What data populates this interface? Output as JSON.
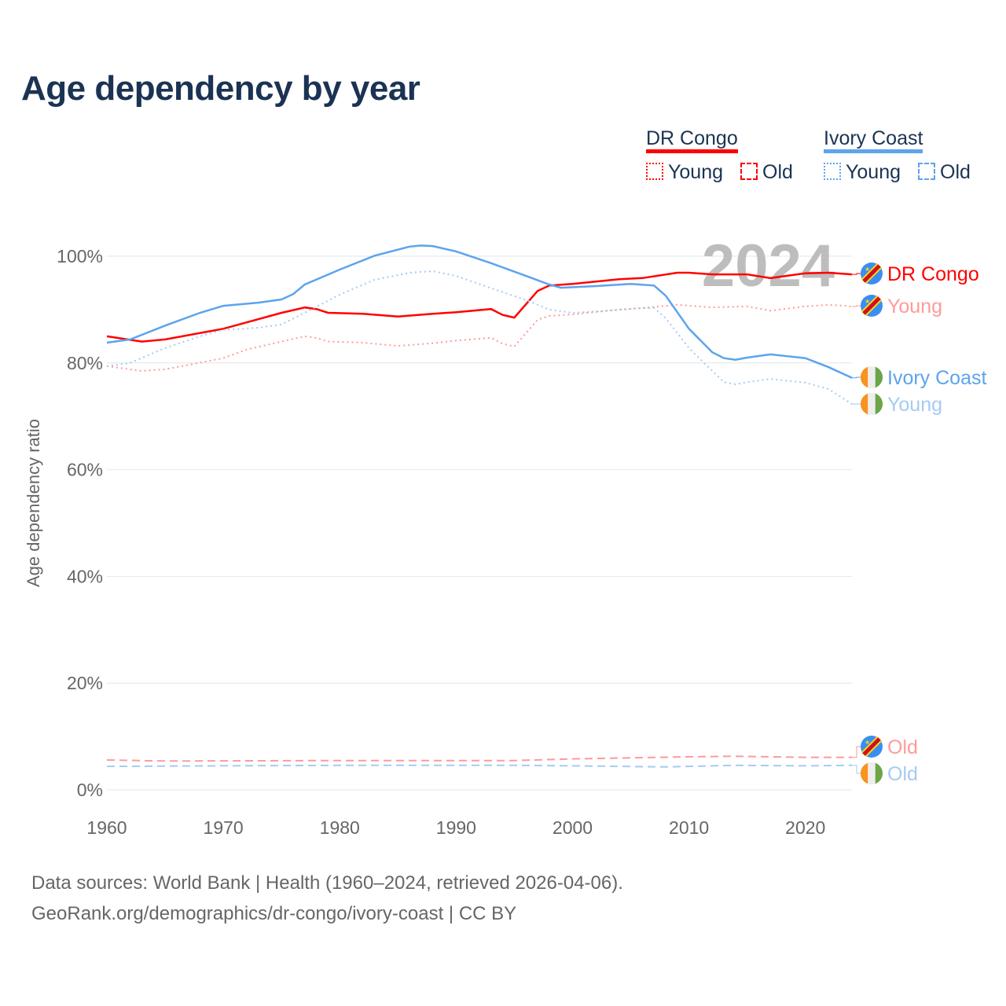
{
  "title": "Age dependency by year",
  "legend": {
    "groups": [
      {
        "name": "DR Congo",
        "color": "#ff0000",
        "items": [
          "Young",
          "Old"
        ]
      },
      {
        "name": "Ivory Coast",
        "color": "#5ca4ec",
        "items": [
          "Young",
          "Old"
        ]
      }
    ]
  },
  "year_watermark": "2024",
  "source_line1": "Data sources: World Bank | Health (1960–2024, retrieved 2026-04-06).",
  "source_line2": "GeoRank.org/demographics/dr-congo/ivory-coast | CC BY",
  "chart_data": {
    "type": "line",
    "title": "Age dependency by year",
    "xlabel": "",
    "ylabel": "Age dependency ratio",
    "xlim": [
      1960,
      2024
    ],
    "ylim": [
      0,
      100
    ],
    "xticks": [
      "1960",
      "1970",
      "1980",
      "1990",
      "2000",
      "2010",
      "2020"
    ],
    "yticks": [
      "0%",
      "20%",
      "40%",
      "60%",
      "80%",
      "100%"
    ],
    "series": [
      {
        "name": "DR Congo",
        "label": "DR Congo",
        "style": "solid",
        "color": "#ff0000",
        "points": [
          [
            1960,
            85.0
          ],
          [
            1963,
            84.0
          ],
          [
            1965,
            84.4
          ],
          [
            1970,
            86.4
          ],
          [
            1972,
            87.6
          ],
          [
            1975,
            89.4
          ],
          [
            1977,
            90.4
          ],
          [
            1978,
            90.1
          ],
          [
            1979,
            89.4
          ],
          [
            1982,
            89.2
          ],
          [
            1985,
            88.7
          ],
          [
            1988,
            89.2
          ],
          [
            1990,
            89.5
          ],
          [
            1993,
            90.1
          ],
          [
            1994,
            89.0
          ],
          [
            1995,
            88.5
          ],
          [
            1997,
            93.5
          ],
          [
            1998,
            94.5
          ],
          [
            2000,
            94.8
          ],
          [
            2004,
            95.7
          ],
          [
            2006,
            95.9
          ],
          [
            2009,
            96.9
          ],
          [
            2010,
            96.9
          ],
          [
            2012,
            96.6
          ],
          [
            2015,
            96.6
          ],
          [
            2017,
            95.9
          ],
          [
            2020,
            96.8
          ],
          [
            2022,
            96.9
          ],
          [
            2024,
            96.6
          ]
        ]
      },
      {
        "name": "DR Congo Young",
        "label": "Young",
        "style": "dotted",
        "color": "#ff9a9a",
        "points": [
          [
            1960,
            79.4
          ],
          [
            1963,
            78.5
          ],
          [
            1965,
            78.8
          ],
          [
            1970,
            80.9
          ],
          [
            1972,
            82.5
          ],
          [
            1975,
            84.0
          ],
          [
            1977,
            85.0
          ],
          [
            1978,
            84.7
          ],
          [
            1979,
            84.0
          ],
          [
            1982,
            83.8
          ],
          [
            1985,
            83.2
          ],
          [
            1988,
            83.7
          ],
          [
            1990,
            84.2
          ],
          [
            1993,
            84.7
          ],
          [
            1994,
            83.6
          ],
          [
            1995,
            83.1
          ],
          [
            1997,
            88.1
          ],
          [
            1998,
            88.8
          ],
          [
            2000,
            89.1
          ],
          [
            2004,
            90.0
          ],
          [
            2006,
            90.3
          ],
          [
            2009,
            90.9
          ],
          [
            2012,
            90.4
          ],
          [
            2015,
            90.6
          ],
          [
            2017,
            89.8
          ],
          [
            2020,
            90.6
          ],
          [
            2022,
            90.9
          ],
          [
            2024,
            90.6
          ]
        ]
      },
      {
        "name": "DR Congo Old",
        "label": "Old",
        "style": "dashed",
        "color": "#ff9a9a",
        "points": [
          [
            1960,
            5.6
          ],
          [
            1965,
            5.4
          ],
          [
            1980,
            5.5
          ],
          [
            1995,
            5.5
          ],
          [
            2000,
            5.8
          ],
          [
            2010,
            6.2
          ],
          [
            2014,
            6.3
          ],
          [
            2020,
            6.1
          ],
          [
            2024,
            6.1
          ]
        ]
      },
      {
        "name": "Ivory Coast",
        "label": "Ivory Coast",
        "style": "solid",
        "color": "#5ca4ec",
        "points": [
          [
            1960,
            83.8
          ],
          [
            1962,
            84.4
          ],
          [
            1965,
            87.0
          ],
          [
            1968,
            89.4
          ],
          [
            1970,
            90.7
          ],
          [
            1973,
            91.3
          ],
          [
            1975,
            91.9
          ],
          [
            1976,
            92.9
          ],
          [
            1977,
            94.7
          ],
          [
            1980,
            97.5
          ],
          [
            1983,
            100.1
          ],
          [
            1986,
            101.8
          ],
          [
            1987,
            102.0
          ],
          [
            1988,
            101.9
          ],
          [
            1990,
            100.9
          ],
          [
            1993,
            98.7
          ],
          [
            1996,
            96.3
          ],
          [
            1998,
            94.7
          ],
          [
            1999,
            94.1
          ],
          [
            2002,
            94.4
          ],
          [
            2005,
            94.8
          ],
          [
            2007,
            94.5
          ],
          [
            2008,
            92.6
          ],
          [
            2010,
            86.4
          ],
          [
            2012,
            82.0
          ],
          [
            2013,
            80.9
          ],
          [
            2014,
            80.6
          ],
          [
            2015,
            81.0
          ],
          [
            2017,
            81.6
          ],
          [
            2020,
            80.9
          ],
          [
            2022,
            79.2
          ],
          [
            2024,
            77.2
          ]
        ]
      },
      {
        "name": "Ivory Coast Young",
        "label": "Young",
        "style": "dotted",
        "color": "#a5cbf2",
        "points": [
          [
            1960,
            79.4
          ],
          [
            1962,
            80.0
          ],
          [
            1965,
            82.8
          ],
          [
            1968,
            85.0
          ],
          [
            1970,
            86.2
          ],
          [
            1973,
            86.6
          ],
          [
            1975,
            87.2
          ],
          [
            1977,
            89.4
          ],
          [
            1980,
            92.8
          ],
          [
            1983,
            95.6
          ],
          [
            1986,
            96.9
          ],
          [
            1988,
            97.2
          ],
          [
            1990,
            96.3
          ],
          [
            1993,
            94.0
          ],
          [
            1996,
            91.8
          ],
          [
            1998,
            90.0
          ],
          [
            2000,
            89.4
          ],
          [
            2003,
            89.8
          ],
          [
            2006,
            90.3
          ],
          [
            2007,
            90.3
          ],
          [
            2008,
            88.4
          ],
          [
            2010,
            82.8
          ],
          [
            2012,
            78.5
          ],
          [
            2013,
            76.4
          ],
          [
            2014,
            76.0
          ],
          [
            2015,
            76.4
          ],
          [
            2017,
            77.0
          ],
          [
            2020,
            76.3
          ],
          [
            2022,
            75.1
          ],
          [
            2024,
            72.3
          ]
        ]
      },
      {
        "name": "Ivory Coast Old",
        "label": "Old",
        "style": "dashed",
        "color": "#a5cbf2",
        "points": [
          [
            1960,
            4.4
          ],
          [
            1970,
            4.5
          ],
          [
            1980,
            4.6
          ],
          [
            1995,
            4.6
          ],
          [
            2000,
            4.5
          ],
          [
            2008,
            4.3
          ],
          [
            2014,
            4.6
          ],
          [
            2020,
            4.5
          ],
          [
            2024,
            4.6
          ]
        ]
      }
    ]
  }
}
